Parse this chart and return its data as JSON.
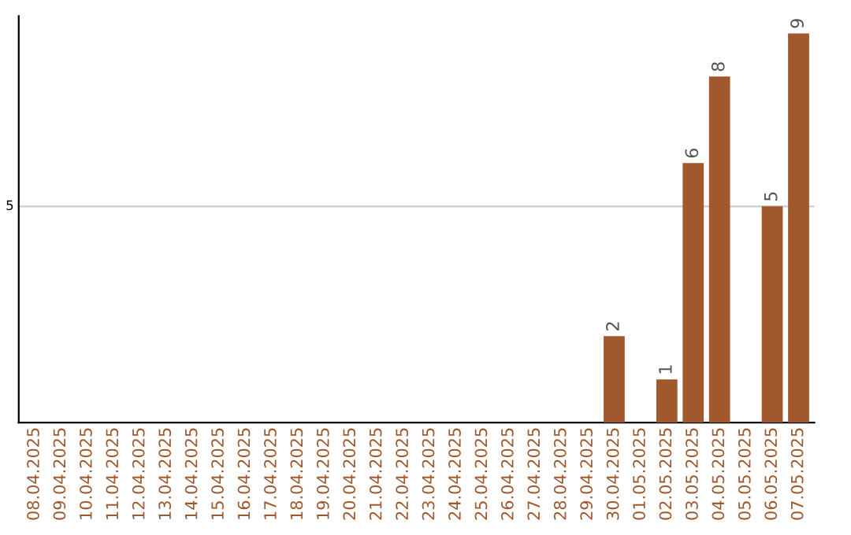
{
  "chart_data": {
    "type": "bar",
    "categories": [
      "08.04.2025",
      "09.04.2025",
      "10.04.2025",
      "11.04.2025",
      "12.04.2025",
      "13.04.2025",
      "14.04.2025",
      "15.04.2025",
      "16.04.2025",
      "17.04.2025",
      "18.04.2025",
      "19.04.2025",
      "20.04.2025",
      "21.04.2025",
      "22.04.2025",
      "23.04.2025",
      "24.04.2025",
      "25.04.2025",
      "26.04.2025",
      "27.04.2025",
      "28.04.2025",
      "29.04.2025",
      "30.04.2025",
      "01.05.2025",
      "02.05.2025",
      "03.05.2025",
      "04.05.2025",
      "05.05.2025",
      "06.05.2025",
      "07.05.2025"
    ],
    "values": [
      null,
      null,
      null,
      null,
      null,
      null,
      null,
      null,
      null,
      null,
      null,
      null,
      null,
      null,
      null,
      null,
      null,
      null,
      null,
      null,
      null,
      null,
      2,
      null,
      1,
      6,
      8,
      null,
      5,
      9
    ],
    "data_labels": true,
    "ylim": [
      0,
      9.4
    ],
    "color": "#a0582c",
    "ref_lines": [
      {
        "axis": "y",
        "value": 5,
        "label": "5",
        "color": "#cccccc"
      }
    ]
  }
}
